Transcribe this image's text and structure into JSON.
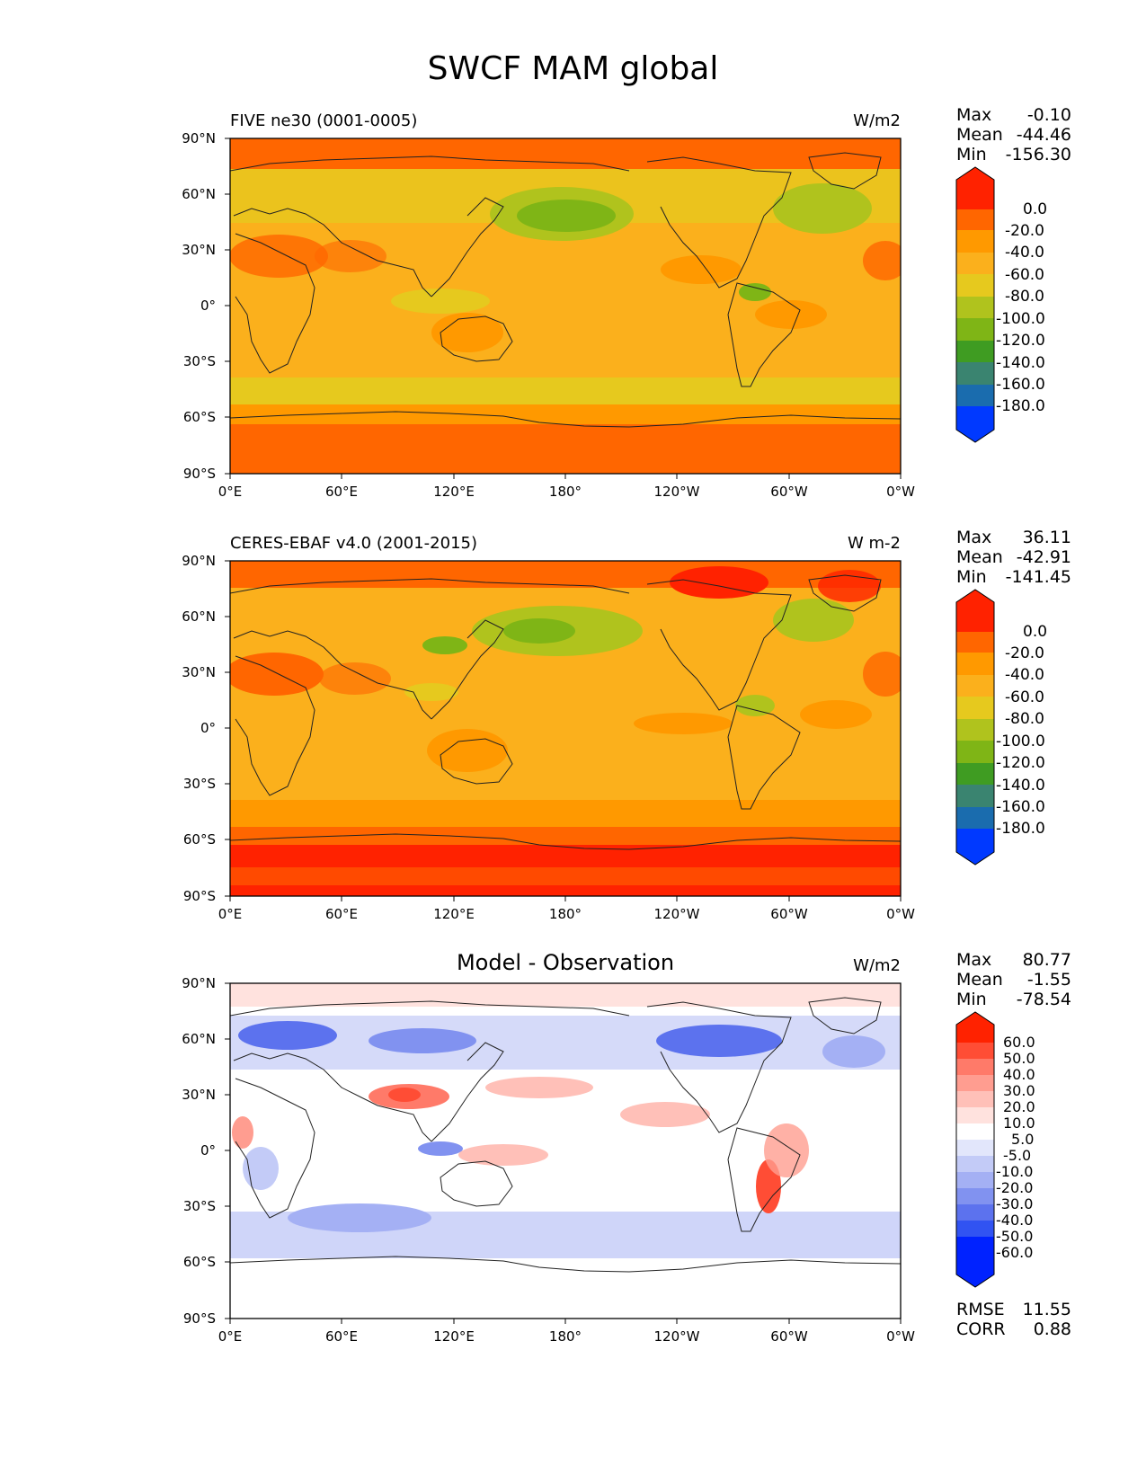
{
  "title": "SWCF MAM global",
  "lat_labels": [
    "90°N",
    "60°N",
    "30°N",
    "0°",
    "30°S",
    "60°S",
    "90°S"
  ],
  "lon_labels": [
    "0°E",
    "60°E",
    "120°E",
    "180°",
    "120°W",
    "60°W",
    "0°W"
  ],
  "colors": {
    "sequential": [
      "#ff2200",
      "#ff6600",
      "#ff9900",
      "#fbb01c",
      "#e6c91e",
      "#b0c31d",
      "#7fb516",
      "#3f9c22",
      "#3a8470",
      "#1a6cae",
      "#0039ff"
    ],
    "diverging": [
      "#ff2200",
      "#ff4d35",
      "#ff7a69",
      "#ff9d90",
      "#ffc0b8",
      "#ffe2de",
      "#ffffff",
      "#e2e6fb",
      "#c3cbf7",
      "#a4b0f4",
      "#8192f0",
      "#5c72ee",
      "#3153f2",
      "#0022ff"
    ]
  },
  "panels": [
    {
      "title_left": "FIVE ne30 (0001-0005)",
      "units": "W/m2",
      "stats": [
        {
          "label": "Max",
          "value": "-0.10"
        },
        {
          "label": "Mean",
          "value": "-44.46"
        },
        {
          "label": "Min",
          "value": "-156.30"
        }
      ],
      "colorbar_labels": [
        "0.0",
        "-20.0",
        "-40.0",
        "-60.0",
        "-80.0",
        "-100.0",
        "-120.0",
        "-140.0",
        "-160.0",
        "-180.0"
      ]
    },
    {
      "title_left": "CERES-EBAF v4.0 (2001-2015)",
      "units": "W m-2",
      "stats": [
        {
          "label": "Max",
          "value": "36.11"
        },
        {
          "label": "Mean",
          "value": "-42.91"
        },
        {
          "label": "Min",
          "value": "-141.45"
        }
      ],
      "colorbar_labels": [
        "0.0",
        "-20.0",
        "-40.0",
        "-60.0",
        "-80.0",
        "-100.0",
        "-120.0",
        "-140.0",
        "-160.0",
        "-180.0"
      ]
    },
    {
      "title_center": "Model - Observation",
      "units": "W/m2",
      "stats": [
        {
          "label": "Max",
          "value": "80.77"
        },
        {
          "label": "Mean",
          "value": "-1.55"
        },
        {
          "label": "Min",
          "value": "-78.54"
        }
      ],
      "colorbar_labels": [
        "60.0",
        "50.0",
        "40.0",
        "30.0",
        "20.0",
        "10.0",
        "5.0",
        "-5.0",
        "-10.0",
        "-20.0",
        "-30.0",
        "-40.0",
        "-50.0",
        "-60.0"
      ],
      "errors": [
        {
          "label": "RMSE",
          "value": "11.55"
        },
        {
          "label": "CORR",
          "value": "0.88"
        }
      ]
    }
  ]
}
